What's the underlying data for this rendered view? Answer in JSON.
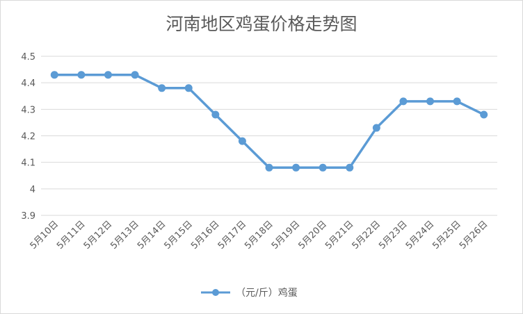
{
  "chart_data": {
    "type": "line",
    "title": "河南地区鸡蛋价格走势图",
    "xlabel": "",
    "ylabel": "",
    "categories": [
      "5月10日",
      "5月11日",
      "5月12日",
      "5月13日",
      "5月14日",
      "5月15日",
      "5月16日",
      "5月17日",
      "5月18日",
      "5月19日",
      "5月20日",
      "5月21日",
      "5月22日",
      "5月23日",
      "5月24日",
      "5月25日",
      "5月26日"
    ],
    "series": [
      {
        "name": "（元/斤）鸡蛋",
        "color": "#5b9bd5",
        "values": [
          4.43,
          4.43,
          4.43,
          4.43,
          4.38,
          4.38,
          4.28,
          4.18,
          4.08,
          4.08,
          4.08,
          4.08,
          4.23,
          4.33,
          4.33,
          4.33,
          4.28
        ]
      }
    ],
    "ylim": [
      3.9,
      4.5
    ],
    "yticks": [
      "3.9",
      "4",
      "4.1",
      "4.2",
      "4.3",
      "4.4",
      "4.5"
    ],
    "grid": true,
    "legend_position": "bottom"
  }
}
